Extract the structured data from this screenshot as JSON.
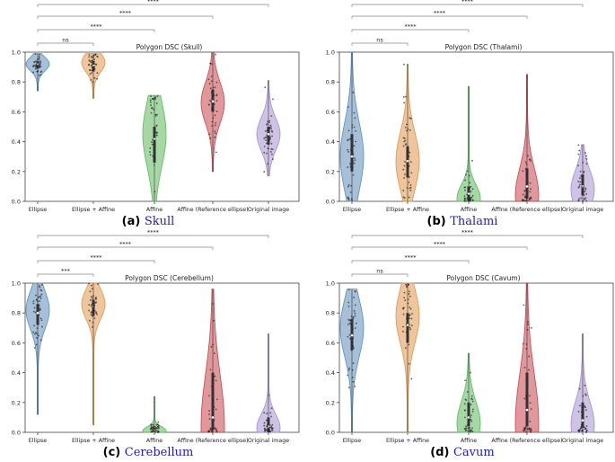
{
  "figure": {
    "captions": [
      {
        "label": "(a)",
        "name": "Skull"
      },
      {
        "label": "(b)",
        "name": "Thalami"
      },
      {
        "label": "(c)",
        "name": "Cerebellum"
      },
      {
        "label": "(d)",
        "name": "Cavum"
      }
    ],
    "colors": {
      "Ellipse": "#5b8db8",
      "Ellipse + Affine": "#e0954a",
      "Affine": "#5cb85c",
      "Affine (Reference ellipse)": "#c8444a",
      "Original image": "#a58fcf",
      "link": "#1a1ad6"
    }
  },
  "chart_data": [
    {
      "type": "violin",
      "title": "Polygon DSC (Skull)",
      "categories": [
        "Ellipse",
        "Ellipse + Affine",
        "Affine",
        "Affine (Reference ellipse)",
        "Original image"
      ],
      "ylim": [
        0,
        1.0
      ],
      "yticks": [
        "0.0",
        "0.2",
        "0.4",
        "0.6",
        "0.8",
        "1.0"
      ],
      "series": [
        {
          "name": "Ellipse",
          "median": 0.92,
          "q1": 0.89,
          "q3": 0.94,
          "min": 0.74,
          "max": 0.99,
          "mode": 0.92
        },
        {
          "name": "Ellipse + Affine",
          "median": 0.91,
          "q1": 0.87,
          "q3": 0.94,
          "min": 0.69,
          "max": 0.99,
          "mode": 0.93
        },
        {
          "name": "Affine",
          "median": 0.42,
          "q1": 0.26,
          "q3": 0.5,
          "min": 0.0,
          "max": 0.71,
          "mode": 0.45
        },
        {
          "name": "Affine (Reference ellipse)",
          "median": 0.67,
          "q1": 0.6,
          "q3": 0.75,
          "min": 0.2,
          "max": 1.0,
          "mode": 0.66
        },
        {
          "name": "Original image",
          "median": 0.45,
          "q1": 0.38,
          "q3": 0.5,
          "min": 0.17,
          "max": 0.81,
          "mode": 0.45
        }
      ],
      "comparisons": [
        {
          "pair": [
            "Ellipse",
            "Ellipse + Affine"
          ],
          "label": "ns"
        },
        {
          "pair": [
            "Ellipse",
            "Affine"
          ],
          "label": "****"
        },
        {
          "pair": [
            "Ellipse",
            "Affine (Reference ellipse)"
          ],
          "label": "****"
        },
        {
          "pair": [
            "Ellipse",
            "Original image"
          ],
          "label": "****"
        }
      ]
    },
    {
      "type": "violin",
      "title": "Polygon DSC (Thalami)",
      "categories": [
        "Ellipse",
        "Ellipse + Affine",
        "Affine",
        "Affine (Reference ellipse)",
        "Original image"
      ],
      "ylim": [
        0,
        1.0
      ],
      "yticks": [
        "0.0",
        "0.2",
        "0.4",
        "0.6",
        "0.8",
        "1.0"
      ],
      "series": [
        {
          "name": "Ellipse",
          "median": 0.3,
          "q1": 0.2,
          "q3": 0.45,
          "min": 0.0,
          "max": 1.0,
          "mode": 0.3
        },
        {
          "name": "Ellipse + Affine",
          "median": 0.27,
          "q1": 0.16,
          "q3": 0.37,
          "min": 0.0,
          "max": 0.92,
          "mode": 0.27
        },
        {
          "name": "Affine",
          "median": 0.05,
          "q1": 0.0,
          "q3": 0.1,
          "min": 0.0,
          "max": 0.77,
          "mode": 0.02
        },
        {
          "name": "Affine (Reference ellipse)",
          "median": 0.1,
          "q1": 0.02,
          "q3": 0.22,
          "min": 0.0,
          "max": 0.85,
          "mode": 0.04
        },
        {
          "name": "Original image",
          "median": 0.1,
          "q1": 0.04,
          "q3": 0.18,
          "min": 0.0,
          "max": 0.38,
          "mode": 0.08
        }
      ],
      "comparisons": [
        {
          "pair": [
            "Ellipse",
            "Ellipse + Affine"
          ],
          "label": "ns"
        },
        {
          "pair": [
            "Ellipse",
            "Affine"
          ],
          "label": "****"
        },
        {
          "pair": [
            "Ellipse",
            "Affine (Reference ellipse)"
          ],
          "label": "****"
        },
        {
          "pair": [
            "Ellipse",
            "Original image"
          ],
          "label": "****"
        }
      ]
    },
    {
      "type": "violin",
      "title": "Polygon DSC (Cerebellum)",
      "categories": [
        "Ellipse",
        "Ellipse + Affine",
        "Affine",
        "Affine (Reference ellipse)",
        "Original image"
      ],
      "ylim": [
        0,
        1.0
      ],
      "yticks": [
        "0.0",
        "0.2",
        "0.4",
        "0.6",
        "0.8",
        "1.0"
      ],
      "series": [
        {
          "name": "Ellipse",
          "median": 0.8,
          "q1": 0.72,
          "q3": 0.86,
          "min": 0.12,
          "max": 1.0,
          "mode": 0.82
        },
        {
          "name": "Ellipse + Affine",
          "median": 0.85,
          "q1": 0.78,
          "q3": 0.89,
          "min": 0.05,
          "max": 1.0,
          "mode": 0.86
        },
        {
          "name": "Affine",
          "median": 0.01,
          "q1": 0.0,
          "q3": 0.03,
          "min": 0.0,
          "max": 0.24,
          "mode": 0.01
        },
        {
          "name": "Affine (Reference ellipse)",
          "median": 0.1,
          "q1": 0.02,
          "q3": 0.4,
          "min": 0.0,
          "max": 0.96,
          "mode": 0.04
        },
        {
          "name": "Original image",
          "median": 0.04,
          "q1": 0.0,
          "q3": 0.1,
          "min": 0.0,
          "max": 0.66,
          "mode": 0.03
        }
      ],
      "comparisons": [
        {
          "pair": [
            "Ellipse",
            "Ellipse + Affine"
          ],
          "label": "***"
        },
        {
          "pair": [
            "Ellipse",
            "Affine"
          ],
          "label": "****"
        },
        {
          "pair": [
            "Ellipse",
            "Affine (Reference ellipse)"
          ],
          "label": "****"
        },
        {
          "pair": [
            "Ellipse",
            "Original image"
          ],
          "label": "****"
        }
      ]
    },
    {
      "type": "violin",
      "title": "Polygon DSC (Cavum)",
      "categories": [
        "Ellipse",
        "Ellipse + Affine",
        "Affine",
        "Affine (Reference ellipse)",
        "Original image"
      ],
      "ylim": [
        0,
        1.0
      ],
      "yticks": [
        "0.0",
        "0.2",
        "0.4",
        "0.6",
        "0.8",
        "1.0"
      ],
      "series": [
        {
          "name": "Ellipse",
          "median": 0.65,
          "q1": 0.55,
          "q3": 0.76,
          "min": 0.0,
          "max": 0.96,
          "mode": 0.7
        },
        {
          "name": "Ellipse + Affine",
          "median": 0.72,
          "q1": 0.6,
          "q3": 0.8,
          "min": 0.0,
          "max": 1.0,
          "mode": 0.78
        },
        {
          "name": "Affine",
          "median": 0.1,
          "q1": 0.04,
          "q3": 0.2,
          "min": 0.0,
          "max": 0.53,
          "mode": 0.06
        },
        {
          "name": "Affine (Reference ellipse)",
          "median": 0.15,
          "q1": 0.04,
          "q3": 0.4,
          "min": 0.0,
          "max": 1.0,
          "mode": 0.06
        },
        {
          "name": "Original image",
          "median": 0.08,
          "q1": 0.03,
          "q3": 0.2,
          "min": 0.0,
          "max": 0.66,
          "mode": 0.05
        }
      ],
      "comparisons": [
        {
          "pair": [
            "Ellipse",
            "Ellipse + Affine"
          ],
          "label": "ns"
        },
        {
          "pair": [
            "Ellipse",
            "Affine"
          ],
          "label": "****"
        },
        {
          "pair": [
            "Ellipse",
            "Affine (Reference ellipse)"
          ],
          "label": "****"
        },
        {
          "pair": [
            "Ellipse",
            "Original image"
          ],
          "label": "****"
        }
      ]
    }
  ]
}
